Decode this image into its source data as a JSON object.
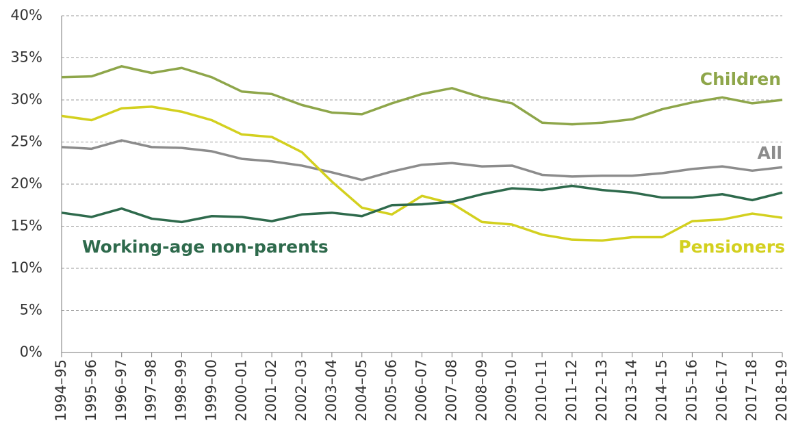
{
  "chart_data": {
    "type": "line",
    "categories": [
      "1994–95",
      "1995–96",
      "1996–97",
      "1997–98",
      "1998–99",
      "1999–00",
      "2000–01",
      "2001–02",
      "2002–03",
      "2003–04",
      "2004–05",
      "2005–06",
      "2006–07",
      "2007–08",
      "2008–09",
      "2009–10",
      "2010–11",
      "2011–12",
      "2012–13",
      "2013–14",
      "2014–15",
      "2015–16",
      "2016–17",
      "2017–18",
      "2018–19"
    ],
    "series": [
      {
        "name": "Children",
        "color": "#8ea64a",
        "values": [
          32.7,
          32.8,
          34.0,
          33.2,
          33.8,
          32.7,
          31.0,
          30.7,
          29.4,
          28.5,
          28.3,
          29.6,
          30.7,
          31.4,
          30.3,
          29.6,
          27.3,
          27.1,
          27.3,
          27.7,
          28.9,
          29.7,
          30.3,
          29.6,
          30.0
        ]
      },
      {
        "name": "All",
        "color": "#8c8c8c",
        "values": [
          24.4,
          24.2,
          25.2,
          24.4,
          24.3,
          23.9,
          23.0,
          22.7,
          22.2,
          21.4,
          20.5,
          21.5,
          22.3,
          22.5,
          22.1,
          22.2,
          21.1,
          20.9,
          21.0,
          21.0,
          21.3,
          21.8,
          22.1,
          21.6,
          22.0
        ]
      },
      {
        "name": "Pensioners",
        "color": "#d3d01f",
        "values": [
          28.1,
          27.6,
          29.0,
          29.2,
          28.6,
          27.6,
          25.9,
          25.6,
          23.8,
          20.3,
          17.2,
          16.4,
          18.6,
          17.7,
          15.5,
          15.2,
          14.0,
          13.4,
          13.3,
          13.7,
          13.7,
          15.6,
          15.8,
          16.5,
          16.0
        ]
      },
      {
        "name": "Working-age non-parents",
        "color": "#2e6a4c",
        "values": [
          16.6,
          16.1,
          17.1,
          15.9,
          15.5,
          16.2,
          16.1,
          15.6,
          16.4,
          16.6,
          16.2,
          17.5,
          17.6,
          17.9,
          18.8,
          19.5,
          19.3,
          19.8,
          19.3,
          19.0,
          18.4,
          18.4,
          18.8,
          18.1,
          19.0
        ]
      }
    ],
    "ylim": [
      0,
      40
    ],
    "yticks": [
      {
        "value": 0,
        "label": "0%"
      },
      {
        "value": 5,
        "label": "5%"
      },
      {
        "value": 10,
        "label": "10%"
      },
      {
        "value": 15,
        "label": "15%"
      },
      {
        "value": 20,
        "label": "20%"
      },
      {
        "value": 25,
        "label": "25%"
      },
      {
        "value": 30,
        "label": "30%"
      },
      {
        "value": 35,
        "label": "35%"
      },
      {
        "value": 40,
        "label": "40%"
      }
    ],
    "grid": true
  }
}
